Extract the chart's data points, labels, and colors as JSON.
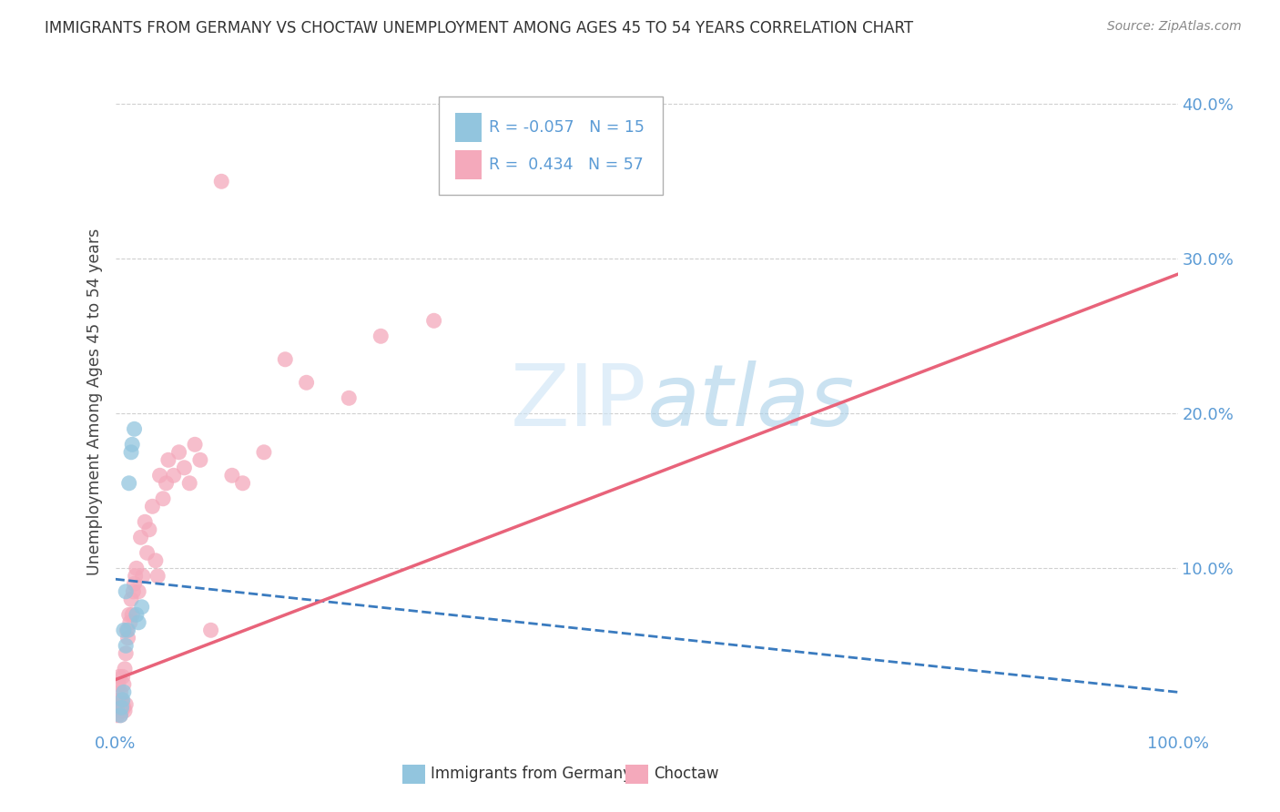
{
  "title": "IMMIGRANTS FROM GERMANY VS CHOCTAW UNEMPLOYMENT AMONG AGES 45 TO 54 YEARS CORRELATION CHART",
  "source": "Source: ZipAtlas.com",
  "ylabel": "Unemployment Among Ages 45 to 54 years",
  "xlabel_blue": "Immigrants from Germany",
  "xlabel_pink": "Choctaw",
  "legend_blue": {
    "R": -0.057,
    "N": 15
  },
  "legend_pink": {
    "R": 0.434,
    "N": 57
  },
  "blue_color": "#92c5de",
  "pink_color": "#f4a9bb",
  "blue_line_color": "#3a7bbf",
  "pink_line_color": "#e8637a",
  "axis_label_color": "#5b9bd5",
  "xlim": [
    0,
    1.0
  ],
  "ylim": [
    -0.005,
    0.42
  ],
  "watermark_zip": "ZIP",
  "watermark_atlas": "atlas",
  "background_color": "#ffffff",
  "grid_color": "#d0d0d0",
  "blue_scatter_x": [
    0.005,
    0.006,
    0.007,
    0.008,
    0.008,
    0.01,
    0.01,
    0.012,
    0.013,
    0.015,
    0.016,
    0.018,
    0.02,
    0.022,
    0.025
  ],
  "blue_scatter_y": [
    0.005,
    0.01,
    0.015,
    0.02,
    0.06,
    0.05,
    0.085,
    0.06,
    0.155,
    0.175,
    0.18,
    0.19,
    0.07,
    0.065,
    0.075
  ],
  "pink_scatter_x": [
    0.002,
    0.003,
    0.003,
    0.004,
    0.004,
    0.005,
    0.005,
    0.005,
    0.006,
    0.006,
    0.007,
    0.007,
    0.008,
    0.008,
    0.009,
    0.009,
    0.01,
    0.01,
    0.011,
    0.012,
    0.013,
    0.014,
    0.015,
    0.016,
    0.017,
    0.018,
    0.019,
    0.02,
    0.022,
    0.024,
    0.026,
    0.028,
    0.03,
    0.032,
    0.035,
    0.038,
    0.04,
    0.042,
    0.045,
    0.048,
    0.05,
    0.055,
    0.06,
    0.065,
    0.07,
    0.075,
    0.08,
    0.09,
    0.1,
    0.11,
    0.12,
    0.14,
    0.16,
    0.18,
    0.22,
    0.25,
    0.3
  ],
  "pink_scatter_y": [
    0.005,
    0.01,
    0.025,
    0.015,
    0.03,
    0.005,
    0.01,
    0.02,
    0.008,
    0.015,
    0.012,
    0.03,
    0.01,
    0.025,
    0.008,
    0.035,
    0.012,
    0.045,
    0.06,
    0.055,
    0.07,
    0.065,
    0.08,
    0.07,
    0.085,
    0.09,
    0.095,
    0.1,
    0.085,
    0.12,
    0.095,
    0.13,
    0.11,
    0.125,
    0.14,
    0.105,
    0.095,
    0.16,
    0.145,
    0.155,
    0.17,
    0.16,
    0.175,
    0.165,
    0.155,
    0.18,
    0.17,
    0.06,
    0.35,
    0.16,
    0.155,
    0.175,
    0.235,
    0.22,
    0.21,
    0.25,
    0.26
  ]
}
